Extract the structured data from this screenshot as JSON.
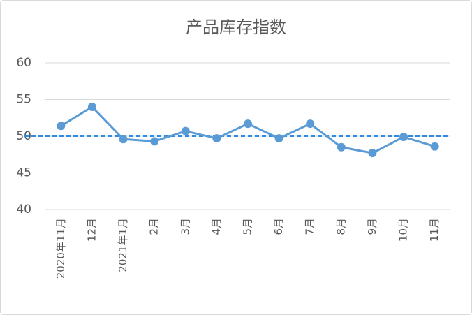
{
  "chart_data": {
    "type": "line",
    "title": "产品库存指数",
    "categories": [
      "2020年11月",
      "12月",
      "2021年1月",
      "2月",
      "3月",
      "4月",
      "5月",
      "6月",
      "7月",
      "8月",
      "9月",
      "10月",
      "11月"
    ],
    "series": [
      {
        "name": "产品库存指数",
        "color": "#5b9bd5",
        "values": [
          51.4,
          54.0,
          49.6,
          49.3,
          50.7,
          49.7,
          51.7,
          49.7,
          51.7,
          48.5,
          47.7,
          49.9,
          48.6
        ]
      }
    ],
    "ylim": [
      40,
      60
    ],
    "yticks": [
      40,
      45,
      50,
      55,
      60
    ],
    "grid": true,
    "reference_line": {
      "value": 50,
      "color": "#2e8be6"
    }
  }
}
